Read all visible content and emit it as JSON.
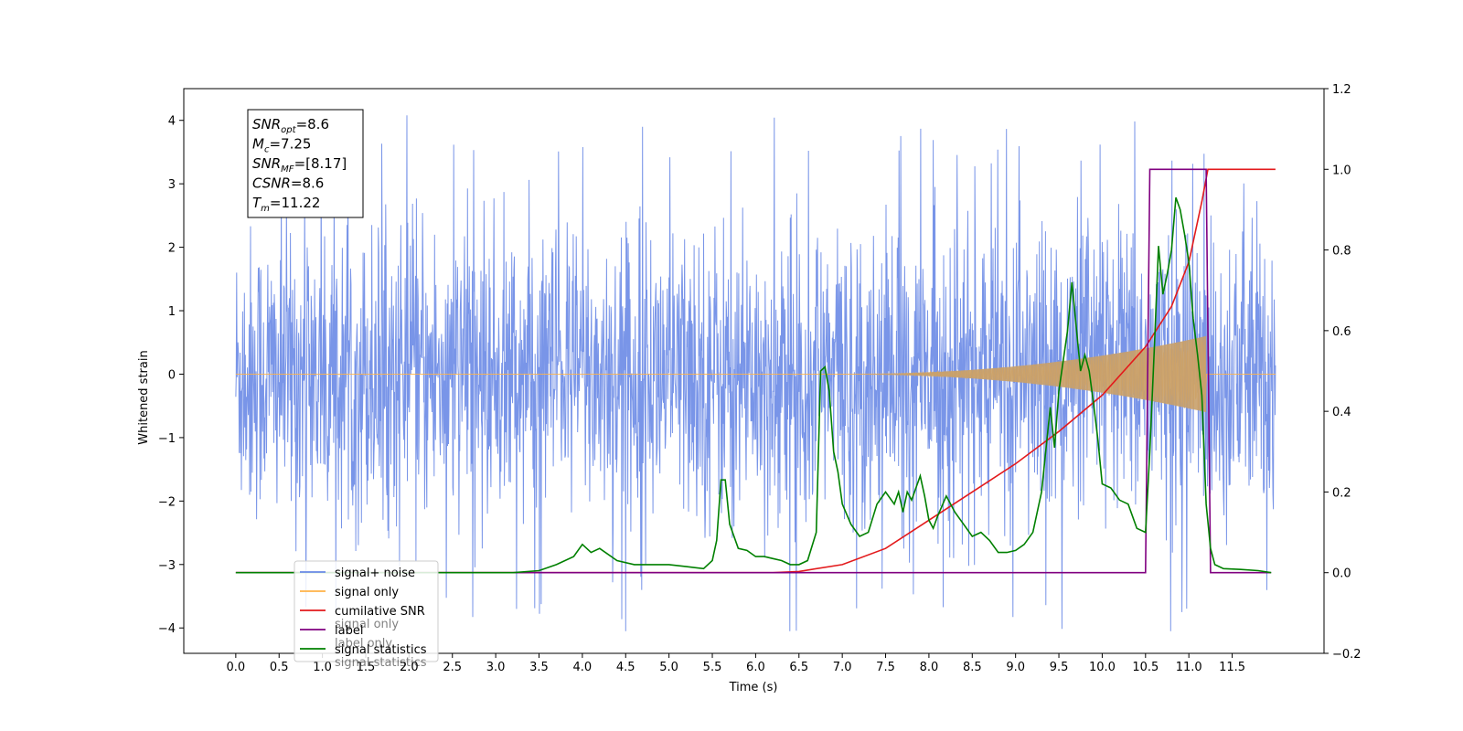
{
  "chart_data": {
    "type": "line",
    "xlabel": "Time (s)",
    "ylabel": "Whitened strain",
    "xlim": [
      -0.6,
      12.56
    ],
    "ylim": [
      -4.4,
      4.5
    ],
    "y2lim": [
      -0.2,
      1.2
    ],
    "x_ticks": [
      "0.0",
      "0.5",
      "1.0",
      "1.5",
      "2.0",
      "2.5",
      "3.0",
      "3.5",
      "4.0",
      "4.5",
      "5.0",
      "5.5",
      "6.0",
      "6.5",
      "7.0",
      "7.5",
      "8.0",
      "8.5",
      "9.0",
      "9.5",
      "10.0",
      "10.5",
      "11.0",
      "11.5"
    ],
    "y_ticks": [
      "-4",
      "-3",
      "-2",
      "-1",
      "0",
      "1",
      "2",
      "3",
      "4"
    ],
    "y2_ticks": [
      "-0.2",
      "0.0",
      "0.2",
      "0.4",
      "0.6",
      "0.8",
      "1.0",
      "1.2"
    ],
    "stats_box": {
      "lines": [
        {
          "sym": "SNR",
          "sub": "opt",
          "rest": "=8.6"
        },
        {
          "sym": "M",
          "sub": "c",
          "rest": "=7.25"
        },
        {
          "sym": "SNR",
          "sub": "MF",
          "rest": "=[8.17]"
        },
        {
          "sym": "CSNR",
          "sub": "",
          "rest": "=8.6"
        },
        {
          "sym": "T",
          "sub": "m",
          "rest": "=11.22"
        }
      ]
    },
    "legend": {
      "placement": "lower-left",
      "items": [
        {
          "label": "signal+ noise",
          "color": "#6a8ae6"
        },
        {
          "label": "signal only",
          "color": "#ffb347"
        },
        {
          "label": "cumilative SNR",
          "color": "#e31a1c"
        },
        {
          "label": "label",
          "color": "#800080"
        },
        {
          "label": "signal statistics",
          "color": "#008000"
        }
      ]
    },
    "legend_overlapped": [
      "signal only",
      "label only",
      "signal statistics"
    ],
    "series": [
      {
        "name": "signal+ noise",
        "axis": "left",
        "x_range": [
          0.0,
          12.0
        ],
        "noise_sigma": 1.0,
        "note_values": "dense whitened noise, approx ±2.5 envelope with spikes to ±4.1"
      },
      {
        "name": "signal only",
        "axis": "left",
        "chirp_start": 6.9,
        "chirp_end": 11.2,
        "peak_amplitude": 0.6
      },
      {
        "name": "cumilative SNR",
        "axis": "right",
        "x": [
          0.0,
          6.2,
          6.5,
          7.0,
          7.5,
          8.0,
          8.5,
          9.0,
          9.5,
          10.0,
          10.5,
          10.8,
          11.0,
          11.15,
          11.22,
          12.0
        ],
        "y": [
          0.0,
          0.0,
          0.003,
          0.02,
          0.06,
          0.13,
          0.2,
          0.27,
          0.35,
          0.44,
          0.56,
          0.66,
          0.77,
          0.92,
          1.0,
          1.0
        ]
      },
      {
        "name": "label",
        "axis": "right",
        "x": [
          0.0,
          10.5,
          10.55,
          11.2,
          11.25,
          11.95
        ],
        "y": [
          0.0,
          0.0,
          1.0,
          1.0,
          0.0,
          0.0
        ]
      },
      {
        "name": "signal statistics",
        "axis": "right",
        "x": [
          0.0,
          3.2,
          3.5,
          3.7,
          3.9,
          4.0,
          4.1,
          4.2,
          4.4,
          4.6,
          4.8,
          5.0,
          5.2,
          5.4,
          5.5,
          5.55,
          5.6,
          5.65,
          5.7,
          5.8,
          5.9,
          6.0,
          6.1,
          6.2,
          6.3,
          6.4,
          6.5,
          6.6,
          6.7,
          6.75,
          6.8,
          6.85,
          6.9,
          6.95,
          7.0,
          7.1,
          7.2,
          7.3,
          7.4,
          7.5,
          7.6,
          7.65,
          7.7,
          7.75,
          7.8,
          7.85,
          7.9,
          7.95,
          8.0,
          8.05,
          8.1,
          8.2,
          8.3,
          8.4,
          8.5,
          8.6,
          8.7,
          8.8,
          8.9,
          9.0,
          9.1,
          9.2,
          9.3,
          9.4,
          9.45,
          9.5,
          9.6,
          9.65,
          9.7,
          9.75,
          9.8,
          9.85,
          9.9,
          9.95,
          10.0,
          10.1,
          10.2,
          10.3,
          10.4,
          10.5,
          10.55,
          10.6,
          10.65,
          10.7,
          10.75,
          10.8,
          10.85,
          10.9,
          10.95,
          11.0,
          11.05,
          11.1,
          11.15,
          11.2,
          11.25,
          11.3,
          11.4,
          11.6,
          11.8,
          11.95
        ],
        "y": [
          0.0,
          0.0,
          0.005,
          0.02,
          0.04,
          0.07,
          0.05,
          0.06,
          0.03,
          0.02,
          0.02,
          0.02,
          0.015,
          0.01,
          0.03,
          0.08,
          0.23,
          0.23,
          0.12,
          0.06,
          0.055,
          0.04,
          0.04,
          0.035,
          0.03,
          0.02,
          0.02,
          0.03,
          0.1,
          0.5,
          0.51,
          0.45,
          0.3,
          0.25,
          0.17,
          0.12,
          0.09,
          0.1,
          0.17,
          0.2,
          0.17,
          0.2,
          0.15,
          0.2,
          0.18,
          0.21,
          0.24,
          0.19,
          0.13,
          0.11,
          0.14,
          0.19,
          0.15,
          0.12,
          0.09,
          0.1,
          0.08,
          0.05,
          0.05,
          0.055,
          0.07,
          0.1,
          0.2,
          0.41,
          0.31,
          0.45,
          0.6,
          0.72,
          0.61,
          0.5,
          0.54,
          0.5,
          0.42,
          0.33,
          0.22,
          0.21,
          0.18,
          0.17,
          0.11,
          0.1,
          0.3,
          0.55,
          0.81,
          0.69,
          0.74,
          0.8,
          0.93,
          0.9,
          0.84,
          0.77,
          0.63,
          0.54,
          0.44,
          0.17,
          0.06,
          0.02,
          0.01,
          0.008,
          0.005,
          0.0
        ]
      }
    ]
  }
}
